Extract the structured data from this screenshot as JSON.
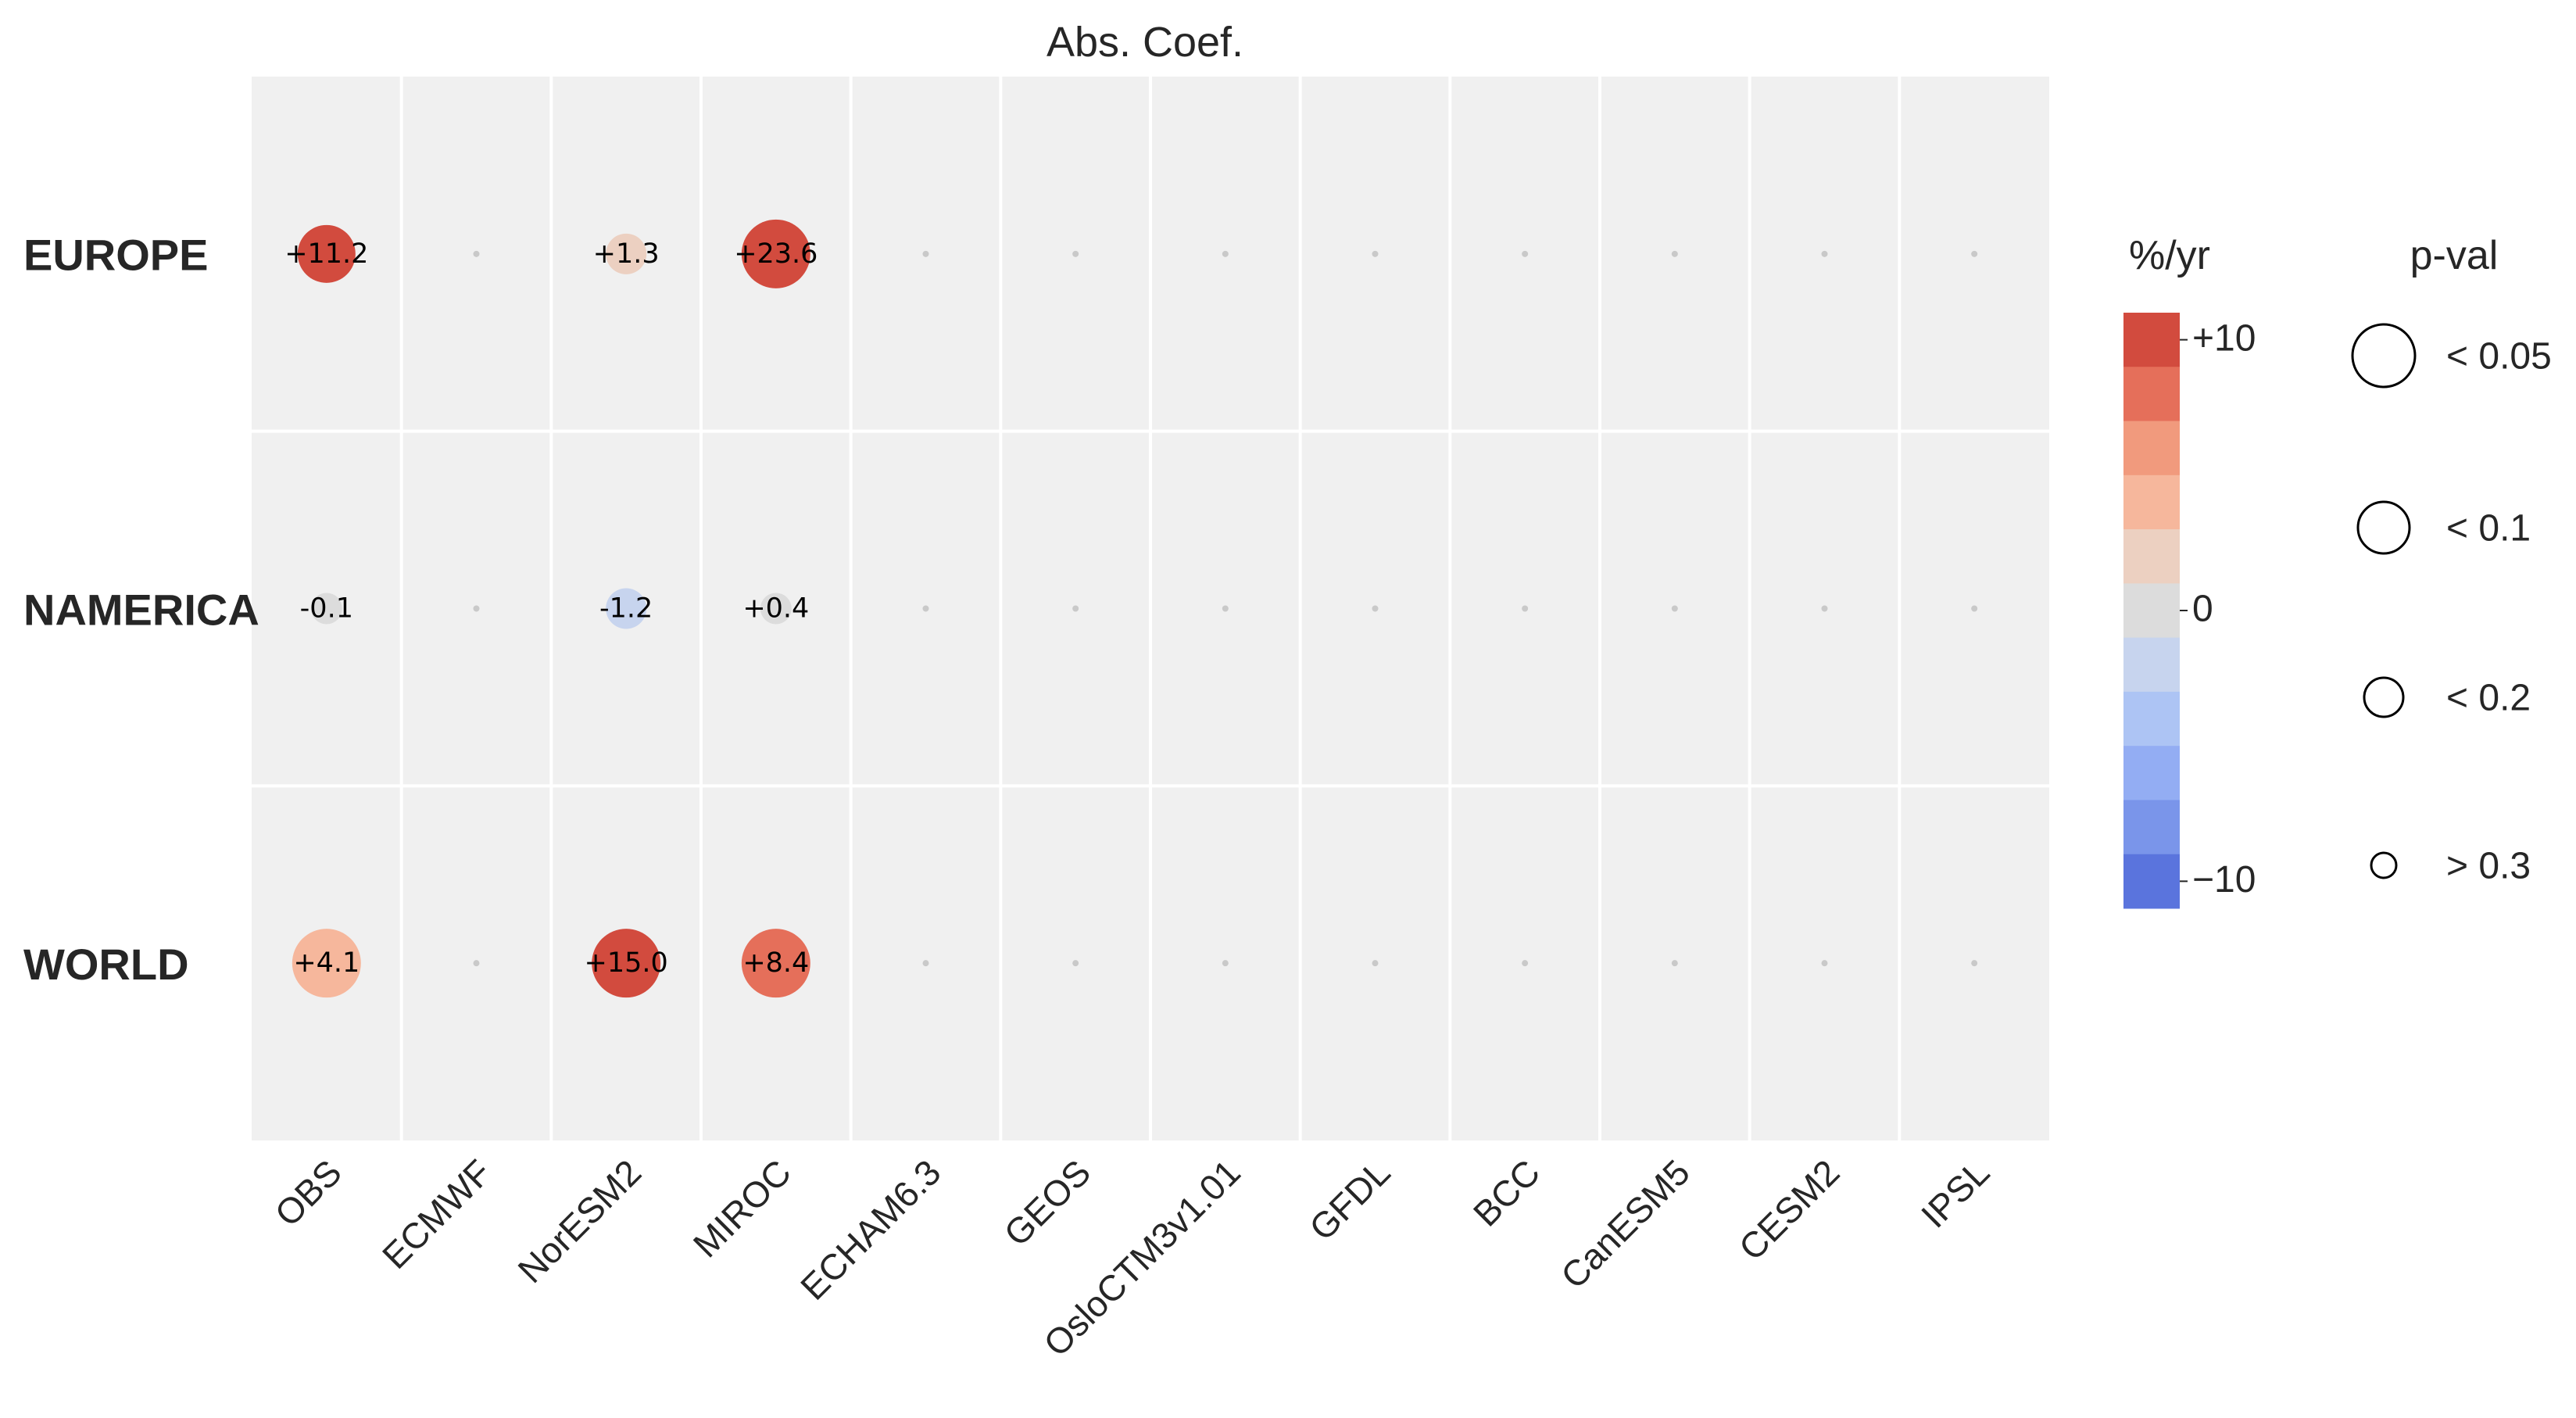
{
  "chart_data": {
    "type": "heatmap",
    "title": "Abs. Coef.",
    "columns": [
      "OBS",
      "ECMWF",
      "NorESM2",
      "MIROC",
      "ECHAM6.3",
      "GEOS",
      "OsloCTM3v1.01",
      "GFDL",
      "BCC",
      "CanESM5",
      "CESM2",
      "IPSL"
    ],
    "rows": [
      {
        "region": "EUROPE",
        "values": [
          11.2,
          null,
          1.3,
          23.6,
          null,
          null,
          null,
          null,
          null,
          null,
          null,
          null
        ],
        "labels": [
          "+11.2",
          "",
          "+1.3",
          "+23.6",
          "",
          "",
          "",
          "",
          "",
          "",
          "",
          ""
        ],
        "pval_class": [
          "< 0.1",
          null,
          "< 0.2",
          "< 0.05",
          null,
          null,
          null,
          null,
          null,
          null,
          null,
          null
        ]
      },
      {
        "region": "NAMERICA",
        "values": [
          -0.1,
          null,
          -1.2,
          0.4,
          null,
          null,
          null,
          null,
          null,
          null,
          null,
          null
        ],
        "labels": [
          "-0.1",
          "",
          "-1.2",
          "+0.4",
          "",
          "",
          "",
          "",
          "",
          "",
          "",
          ""
        ],
        "pval_class": [
          "> 0.3",
          null,
          "< 0.2",
          "> 0.3",
          null,
          null,
          null,
          null,
          null,
          null,
          null,
          null
        ]
      },
      {
        "region": "WORLD",
        "values": [
          4.1,
          null,
          15.0,
          8.4,
          null,
          null,
          null,
          null,
          null,
          null,
          null,
          null
        ],
        "labels": [
          "+4.1",
          "",
          "+15.0",
          "+8.4",
          "",
          "",
          "",
          "",
          "",
          "",
          "",
          ""
        ],
        "pval_class": [
          "< 0.05",
          null,
          "< 0.05",
          "< 0.05",
          null,
          null,
          null,
          null,
          null,
          null,
          null,
          null
        ]
      }
    ],
    "colorbar": {
      "title": "%/yr",
      "range": [
        -11,
        11
      ],
      "ticks": [
        {
          "value": 10,
          "label": "+10"
        },
        {
          "value": 0,
          "label": "0"
        },
        {
          "value": -10,
          "label": "−10"
        }
      ],
      "colors": [
        "#d24b3e",
        "#e56f5a",
        "#f19a7d",
        "#f6b79c",
        "#ecd0c1",
        "#dcdcdc",
        "#c7d4ee",
        "#adc4f4",
        "#93adf3",
        "#7a95ea",
        "#5a74dd"
      ]
    },
    "size_legend": {
      "title": "p-val",
      "entries": [
        "< 0.05",
        "< 0.1",
        "< 0.2",
        "> 0.3"
      ]
    },
    "background_color": "#f0f0f0",
    "grid": true,
    "legend_position": "right"
  }
}
